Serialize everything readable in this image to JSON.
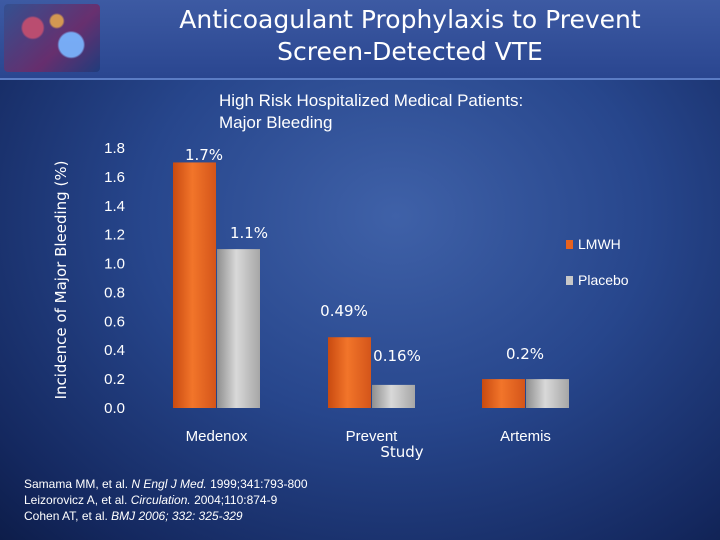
{
  "title": "Anticoagulant Prophylaxis to Prevent\nScreen-Detected VTE",
  "citations": [
    {
      "pre": "Samama MM, et al. ",
      "journal": "N Engl J Med.",
      "post": " 1999;341:793-800"
    },
    {
      "pre": "Leizorovicz A, et al. ",
      "journal": "Circulation.",
      "post": " 2004;110:874-9"
    },
    {
      "pre": "Cohen AT, et al. ",
      "journal": "BMJ 2006; 332: 325-329",
      "post": ""
    }
  ],
  "chart_data": {
    "type": "bar",
    "title": "High Risk Hospitalized Medical Patients:\nMajor Bleeding",
    "xlabel": "Study",
    "ylabel": "Incidence of Major Bleeding (%)",
    "categories": [
      "Medenox",
      "Prevent",
      "Artemis"
    ],
    "series": [
      {
        "name": "LMWH",
        "values": [
          1.7,
          0.49,
          0.2
        ],
        "color": "#e8621e"
      },
      {
        "name": "Placebo",
        "values": [
          1.1,
          0.16,
          0.2
        ],
        "color": "#b3b3b3"
      }
    ],
    "data_labels": [
      {
        "category": "Medenox",
        "text": "1.7%"
      },
      {
        "category": "Medenox",
        "text": "1.1%"
      },
      {
        "category": "Prevent",
        "text": "0.49%"
      },
      {
        "category": "Prevent",
        "text": "0.16%"
      },
      {
        "category": "Artemis",
        "text": "0.2%"
      }
    ],
    "yticks": [
      "0.0",
      "0.2",
      "0.4",
      "0.6",
      "0.8",
      "1.0",
      "1.2",
      "1.4",
      "1.6",
      "1.8"
    ],
    "ylim": [
      0,
      1.8
    ],
    "grid": false,
    "legend_position": "right"
  }
}
